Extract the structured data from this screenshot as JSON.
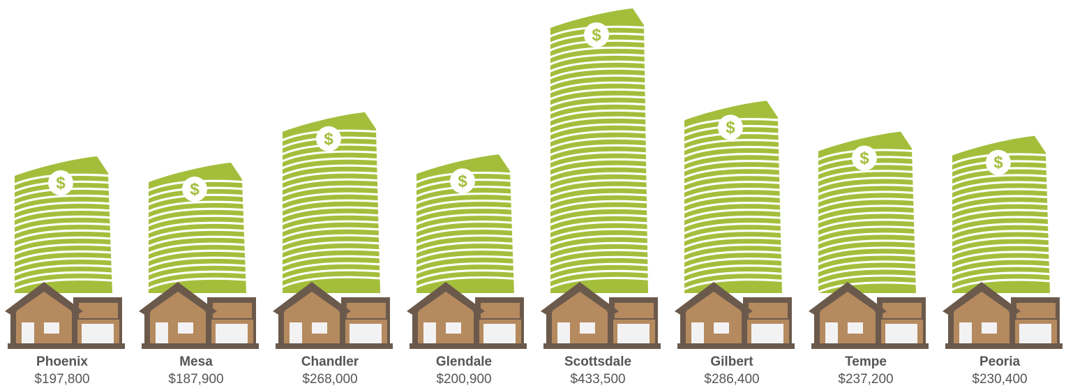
{
  "chart_data": {
    "type": "bar",
    "title": "",
    "xlabel": "",
    "ylabel": "",
    "categories": [
      "Phoenix",
      "Mesa",
      "Chandler",
      "Glendale",
      "Scottsdale",
      "Gilbert",
      "Tempe",
      "Peoria"
    ],
    "value_labels": [
      "$197,800",
      "$187,900",
      "$268,000",
      "$200,900",
      "$433,500",
      "$286,400",
      "$237,200",
      "$230,400"
    ],
    "values": [
      197800,
      187900,
      268000,
      200900,
      433500,
      286400,
      237200,
      230400
    ],
    "grid": false,
    "legend": "none",
    "colors": {
      "money": "#a4be3c",
      "money_stroke": "#ffffff",
      "house_body": "#b58a5f",
      "house_outline": "#6b5a4c",
      "window": "#f2f2f2",
      "text": "#555555"
    },
    "icons": {
      "bar": "money-stack-icon",
      "bill": "dollar-coin-icon",
      "base": "house-icon"
    }
  }
}
